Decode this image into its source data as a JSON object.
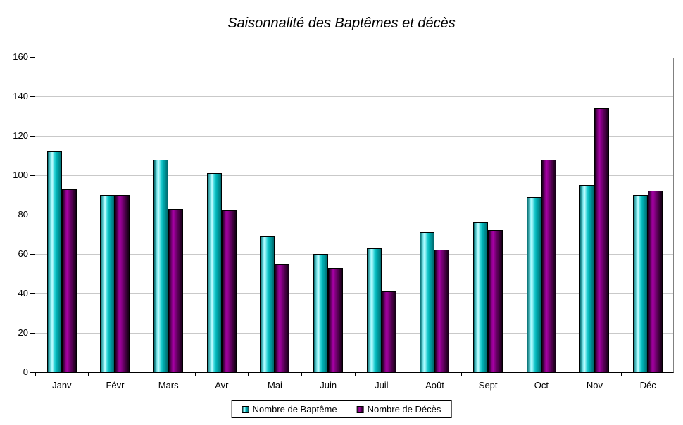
{
  "title": "Saisonnalité des Baptêmes et décès",
  "chart_data": {
    "type": "bar",
    "title": "Saisonnalité des Baptêmes et décès",
    "categories": [
      "Janv",
      "Févr",
      "Mars",
      "Avr",
      "Mai",
      "Juin",
      "Juil",
      "Août",
      "Sept",
      "Oct",
      "Nov",
      "Déc"
    ],
    "series": [
      {
        "name": "Nombre de Baptême",
        "color": "#00c2c6",
        "values": [
          112,
          90,
          108,
          101,
          69,
          60,
          63,
          71,
          76,
          89,
          95,
          90
        ]
      },
      {
        "name": "Nombre de Décès",
        "color": "#7c007a",
        "values": [
          93,
          90,
          83,
          82,
          55,
          53,
          41,
          62,
          72,
          108,
          134,
          92
        ]
      }
    ],
    "xlabel": "",
    "ylabel": "",
    "ylim": [
      0,
      160
    ],
    "yticks": [
      0,
      20,
      40,
      60,
      80,
      100,
      120,
      140,
      160
    ],
    "grid": true,
    "legend_position": "bottom"
  },
  "style_colors": {
    "background": "#ffffff",
    "grid_color": "#c9c9c9",
    "axis_color": "#000000",
    "plot_border_color": "#808080",
    "bar_border_color": "#000000"
  }
}
